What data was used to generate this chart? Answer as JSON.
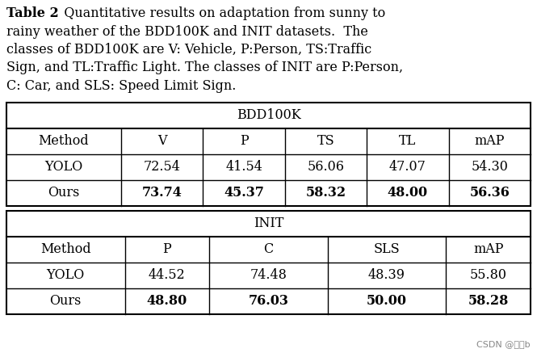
{
  "caption_bold": "Table 2",
  "caption_rest": ".  Quantitative results on adaptation from sunny to rainy weather of the BDD100K and INIT datasets.  The classes of BDD100K are V: Vehicle, P:Person, TS:Traffic Sign, and TL:Traffic Light. The classes of INIT are P:Person, C: Car, and SLS: Speed Limit Sign.",
  "caption_lines": [
    [
      true,
      "Table 2",
      false,
      ".  Quantitative results on adaptation from sunny to"
    ],
    [
      false,
      "rainy weather of the BDD100K and INIT datasets.  The",
      false,
      ""
    ],
    [
      false,
      "classes of BDD100K are V: Vehicle, P:Person, TS:Traffic",
      false,
      ""
    ],
    [
      false,
      "Sign, and TL:Traffic Light. The classes of INIT are P:Person,",
      false,
      ""
    ],
    [
      false,
      "C: Car, and SLS: Speed Limit Sign.",
      false,
      ""
    ]
  ],
  "bdd_header": "BDD100K",
  "bdd_col_headers": [
    "Method",
    "V",
    "P",
    "TS",
    "TL",
    "mAP"
  ],
  "bdd_col_widths_rel": [
    1.4,
    1.0,
    1.0,
    1.0,
    1.0,
    1.0
  ],
  "bdd_rows": [
    [
      "YOLO",
      "72.54",
      "41.54",
      "56.06",
      "47.07",
      "54.30"
    ],
    [
      "Ours",
      "73.74",
      "45.37",
      "58.32",
      "48.00",
      "56.36"
    ]
  ],
  "bdd_bold_row": 1,
  "init_header": "INIT",
  "init_col_headers": [
    "Method",
    "P",
    "C",
    "SLS",
    "mAP"
  ],
  "init_col_widths_rel": [
    1.4,
    1.0,
    1.4,
    1.4,
    1.0
  ],
  "init_rows": [
    [
      "YOLO",
      "44.52",
      "74.48",
      "48.39",
      "55.80"
    ],
    [
      "Ours",
      "48.80",
      "76.03",
      "50.00",
      "58.28"
    ]
  ],
  "init_bold_row": 1,
  "bg_color": "#ffffff",
  "text_color": "#000000",
  "watermark": "CSDN @暗视b",
  "fs_caption": 11.5,
  "fs_table": 11.5,
  "fig_width": 6.65,
  "fig_height": 4.37,
  "dpi": 100
}
